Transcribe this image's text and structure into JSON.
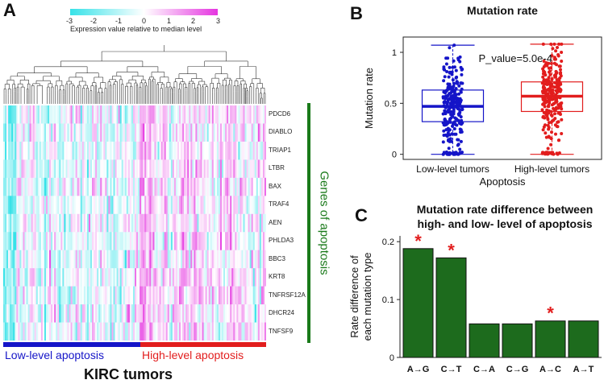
{
  "panel_a": {
    "letter": "A",
    "colorbar": {
      "ticks": [
        "-3",
        "-2",
        "-1",
        "0",
        "1",
        "2",
        "3"
      ],
      "label": "Expression value relative to median level",
      "colors": [
        "#36e2e8",
        "#ffffff",
        "#e535e0"
      ]
    },
    "genes": [
      "PDCD6",
      "DIABLO",
      "TRIAP1",
      "LTBR",
      "BAX",
      "TRAF4",
      "AEN",
      "PHLDA3",
      "BBC3",
      "KRT8",
      "TNFRSF12A",
      "DHCR24",
      "TNFSF9"
    ],
    "side_label": "Genes of apoptosis",
    "side_label_color": "#1a7a1a",
    "group_low": {
      "label": "Low-level apoptosis",
      "color": "#1515c8"
    },
    "group_high": {
      "label": "High-level apoptosis",
      "color": "#e21d1d"
    },
    "bottom_title": "KIRC tumors"
  },
  "chart_data": [
    {
      "panel": "B",
      "type": "box",
      "title": "Mutation rate",
      "xlabel": "Apoptosis",
      "ylabel": "Mutation rate",
      "categories": [
        "Low-level tumors",
        "High-level tumors"
      ],
      "ylim": [
        -0.05,
        1.15
      ],
      "yticks": [
        0,
        0.5,
        1
      ],
      "annotation": "P_value=5.0e-4",
      "series": [
        {
          "color": "#1515c8",
          "min": 0.0,
          "q1": 0.32,
          "median": 0.47,
          "q3": 0.63,
          "max": 1.07
        },
        {
          "color": "#e21d1d",
          "min": 0.0,
          "q1": 0.42,
          "median": 0.57,
          "q3": 0.71,
          "max": 1.08
        }
      ]
    },
    {
      "panel": "C",
      "type": "bar",
      "title": "Mutation rate difference between high- and low- level of apoptosis",
      "title_lines": [
        "Mutation rate difference between",
        "high- and low- level of apoptosis"
      ],
      "xlabel": "",
      "ylabel": "Rate difference of each mutation type",
      "ylabel_lines": [
        "Rate difference of",
        "each mutation type"
      ],
      "categories": [
        "A→G",
        "C→T",
        "C→A",
        "C→G",
        "A→C",
        "A→T"
      ],
      "values": [
        0.188,
        0.172,
        0.058,
        0.058,
        0.063,
        0.063
      ],
      "significant": [
        true,
        true,
        false,
        false,
        true,
        false
      ],
      "marker": "*",
      "ylim": [
        0,
        0.21
      ],
      "yticks": [
        0,
        0.1,
        0.2
      ],
      "bar_color": "#1d6b1d"
    }
  ]
}
